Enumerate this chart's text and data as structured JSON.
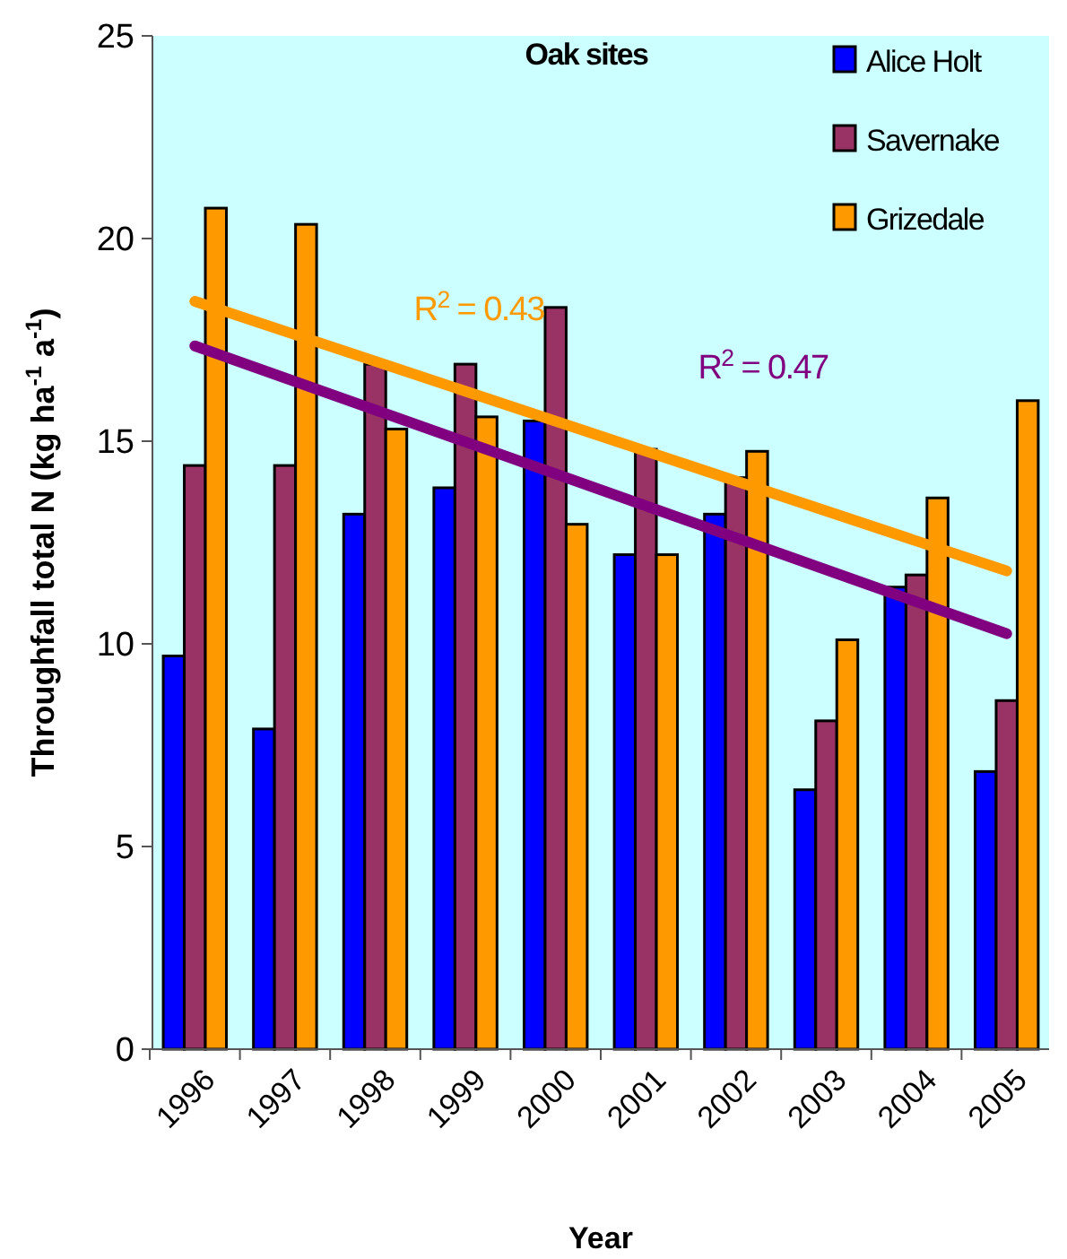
{
  "chart_data": {
    "type": "bar",
    "title": "Oak sites",
    "xlabel": "Year",
    "ylabel": "Throughfall total N (kg ha$^{-1}$ a$^{-1}$)",
    "categories": [
      "1996",
      "1997",
      "1998",
      "1999",
      "2000",
      "2001",
      "2002",
      "2003",
      "2004",
      "2005"
    ],
    "series": [
      {
        "name": "Alice Holt",
        "color": "#0000ff",
        "values": [
          9.7,
          7.9,
          13.2,
          13.85,
          15.5,
          12.2,
          13.2,
          6.4,
          11.4,
          6.85
        ]
      },
      {
        "name": "Savernake",
        "color": "#993366",
        "values": [
          14.4,
          14.4,
          16.9,
          16.9,
          18.3,
          14.8,
          14.1,
          8.1,
          11.7,
          8.6
        ]
      },
      {
        "name": "Grizedale",
        "color": "#ff9900",
        "values": [
          20.75,
          20.35,
          15.3,
          15.6,
          12.95,
          12.2,
          14.75,
          10.1,
          13.6,
          16.0
        ]
      },
      {
        "type": "line",
        "color": "#ff9900",
        "values": [
          18.45,
          null,
          null,
          null,
          null,
          null,
          null,
          null,
          null,
          11.8
        ]
      },
      {
        "type": "line",
        "color": "#800080",
        "values": [
          17.35,
          null,
          null,
          null,
          null,
          null,
          null,
          null,
          null,
          10.25
        ]
      }
    ],
    "annotations": [
      "R$^{2}$ = 0.43",
      "R$^{2}$ = 0.47"
    ],
    "ylim": [
      0,
      25
    ],
    "yticks": [
      0,
      5,
      10,
      15,
      20,
      25
    ],
    "grid": false,
    "legend": "top right"
  }
}
